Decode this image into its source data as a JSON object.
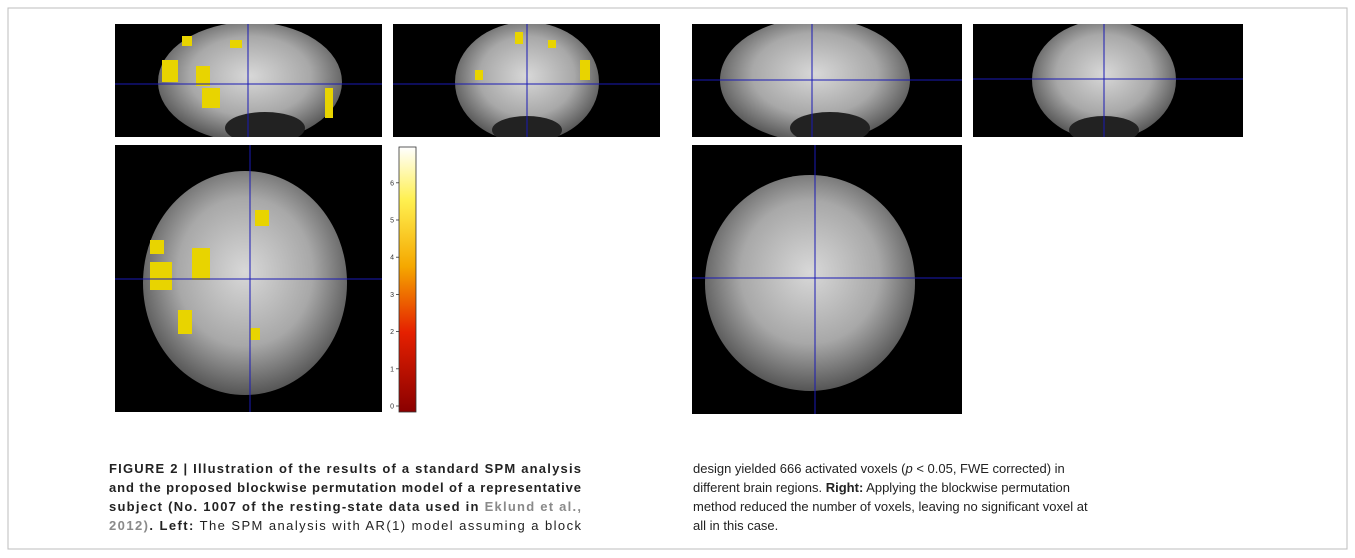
{
  "figure": {
    "colorbar": {
      "ticks": [
        0,
        1,
        2,
        3,
        4,
        5,
        6
      ]
    }
  },
  "caption": {
    "left": [
      [
        "FIGURE 2 | Illustration of the results of a standard SPM analysis"
      ],
      [
        "and the proposed blockwise permutation model of a representative"
      ],
      [
        "subject (No. 1007 of the resting-state data used in ",
        "Eklund et al.,"
      ],
      [
        "2012)",
        ". Left:",
        " The SPM analysis with AR(1) model assuming a block"
      ]
    ],
    "right": [
      [
        "design yielded 666 activated voxels (",
        "p",
        " < 0.05, FWE corrected) in"
      ],
      [
        "different brain regions. ",
        "Right:",
        " Applying the blockwise permutation"
      ],
      [
        "method reduced the number of voxels, leaving no significant voxel at"
      ],
      [
        "all in this case."
      ]
    ]
  }
}
